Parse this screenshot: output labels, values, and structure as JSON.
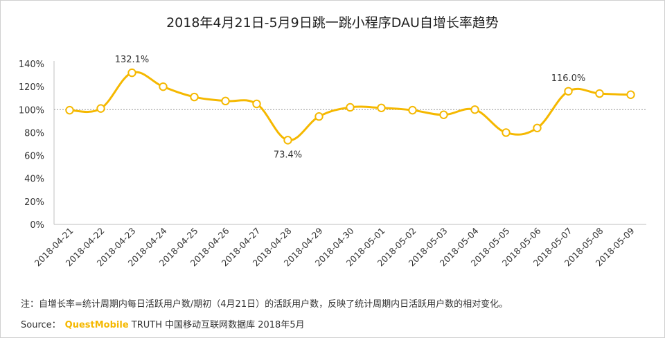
{
  "chart_data": {
    "type": "line",
    "title": "2018年4月21日-5月9日跳一跳小程序DAU自增长率趋势",
    "xlabel": "",
    "ylabel": "",
    "categories": [
      "2018-04-21",
      "2018-04-22",
      "2018-04-23",
      "2018-04-24",
      "2018-04-25",
      "2018-04-26",
      "2018-04-27",
      "2018-04-28",
      "2018-04-29",
      "2018-04-30",
      "2018-05-01",
      "2018-05-02",
      "2018-05-03",
      "2018-05-04",
      "2018-05-05",
      "2018-05-06",
      "2018-05-07",
      "2018-05-08",
      "2018-05-09"
    ],
    "series": [
      {
        "name": "DAU自增长率",
        "values": [
          99.5,
          101,
          132.1,
          120,
          111,
          107.5,
          105,
          73.4,
          94,
          102,
          101.5,
          99.5,
          95.5,
          100,
          80,
          84,
          116.0,
          114,
          113
        ],
        "color": "#f5b800"
      }
    ],
    "ylim": [
      0,
      140
    ],
    "yticks": [
      "0%",
      "20%",
      "40%",
      "60%",
      "80%",
      "100%",
      "120%",
      "140%"
    ],
    "reference_line": 100,
    "annotations": [
      {
        "index": 2,
        "label": "132.1%",
        "position": "above"
      },
      {
        "index": 7,
        "label": "73.4%",
        "position": "below"
      },
      {
        "index": 16,
        "label": "116.0%",
        "position": "above"
      }
    ],
    "grid": false,
    "legend": "none"
  },
  "note": "注：自增长率=统计周期内每日活跃用户数/期初（4月21日）的活跃用户数，反映了统计周期内日活跃用户数的相对变化。",
  "source": {
    "prefix": "Source：",
    "brand": "QuestMobile",
    "suffix": " TRUTH 中国移动互联网数据库 2018年5月"
  }
}
